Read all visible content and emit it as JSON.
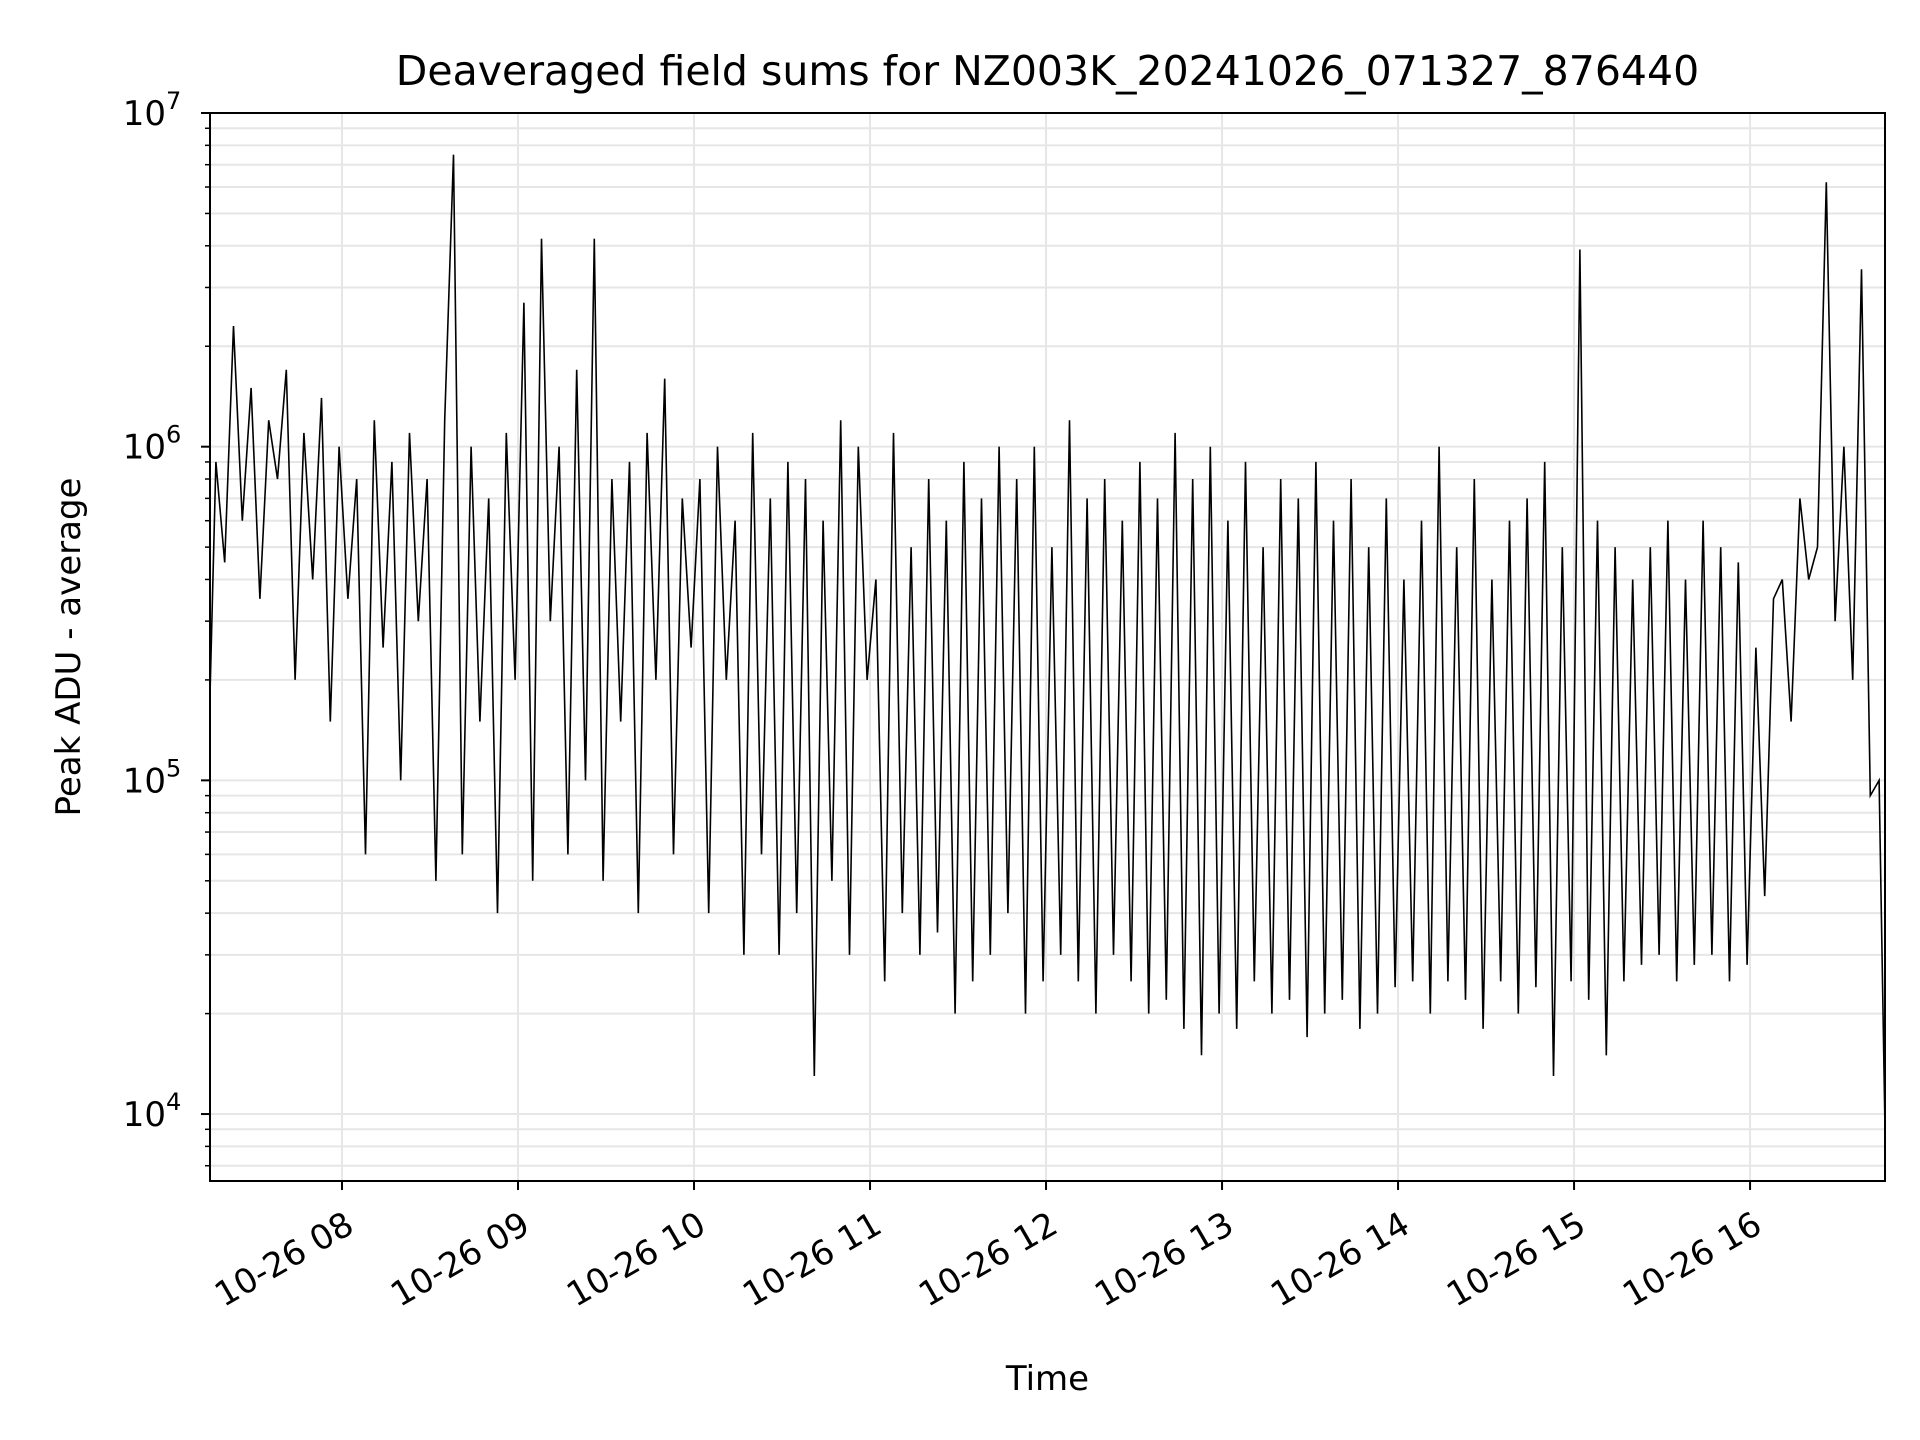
{
  "chart_data": {
    "type": "line",
    "title": "Deaveraged field sums for NZ003K_20241026_071327_876440",
    "xlabel": "Time",
    "ylabel": "Peak ADU - average",
    "yscale": "log",
    "ylim": [
      6300,
      10000000
    ],
    "xlim": [
      "2024-10-26 07:15",
      "2024-10-26 16:46"
    ],
    "grid": true,
    "legend": "none",
    "line_color": "#000000",
    "grid_color": "#e6e6e6",
    "x_ticks": [
      {
        "time": "2024-10-26 08:00",
        "label": "10-26 08"
      },
      {
        "time": "2024-10-26 09:00",
        "label": "10-26 09"
      },
      {
        "time": "2024-10-26 10:00",
        "label": "10-26 10"
      },
      {
        "time": "2024-10-26 11:00",
        "label": "10-26 11"
      },
      {
        "time": "2024-10-26 12:00",
        "label": "10-26 12"
      },
      {
        "time": "2024-10-26 13:00",
        "label": "10-26 13"
      },
      {
        "time": "2024-10-26 14:00",
        "label": "10-26 14"
      },
      {
        "time": "2024-10-26 15:00",
        "label": "10-26 15"
      },
      {
        "time": "2024-10-26 16:00",
        "label": "10-26 16"
      }
    ],
    "y_ticks": [
      {
        "value": 10000,
        "base": "10",
        "exp": "4"
      },
      {
        "value": 100000,
        "base": "10",
        "exp": "5"
      },
      {
        "value": 1000000,
        "base": "10",
        "exp": "6"
      },
      {
        "value": 10000000,
        "base": "10",
        "exp": "7"
      }
    ],
    "series": [
      {
        "x": [
          "2024-10-26 07:15",
          "2024-10-26 07:17",
          "2024-10-26 07:20",
          "2024-10-26 07:23",
          "2024-10-26 07:26",
          "2024-10-26 07:29",
          "2024-10-26 07:32",
          "2024-10-26 07:35",
          "2024-10-26 07:38",
          "2024-10-26 07:41",
          "2024-10-26 07:44",
          "2024-10-26 07:47",
          "2024-10-26 07:50",
          "2024-10-26 07:53",
          "2024-10-26 07:56",
          "2024-10-26 07:59",
          "2024-10-26 08:02",
          "2024-10-26 08:05",
          "2024-10-26 08:08",
          "2024-10-26 08:11",
          "2024-10-26 08:14",
          "2024-10-26 08:17",
          "2024-10-26 08:20",
          "2024-10-26 08:23",
          "2024-10-26 08:26",
          "2024-10-26 08:29",
          "2024-10-26 08:32",
          "2024-10-26 08:35",
          "2024-10-26 08:38",
          "2024-10-26 08:41",
          "2024-10-26 08:44",
          "2024-10-26 08:47",
          "2024-10-26 08:50",
          "2024-10-26 08:53",
          "2024-10-26 08:56",
          "2024-10-26 08:59",
          "2024-10-26 09:02",
          "2024-10-26 09:05",
          "2024-10-26 09:08",
          "2024-10-26 09:11",
          "2024-10-26 09:14",
          "2024-10-26 09:17",
          "2024-10-26 09:20",
          "2024-10-26 09:23",
          "2024-10-26 09:26",
          "2024-10-26 09:29",
          "2024-10-26 09:32",
          "2024-10-26 09:35",
          "2024-10-26 09:38",
          "2024-10-26 09:41",
          "2024-10-26 09:44",
          "2024-10-26 09:47",
          "2024-10-26 09:50",
          "2024-10-26 09:53",
          "2024-10-26 09:56",
          "2024-10-26 09:59",
          "2024-10-26 10:02",
          "2024-10-26 10:05",
          "2024-10-26 10:08",
          "2024-10-26 10:11",
          "2024-10-26 10:14",
          "2024-10-26 10:17",
          "2024-10-26 10:20",
          "2024-10-26 10:23",
          "2024-10-26 10:26",
          "2024-10-26 10:29",
          "2024-10-26 10:32",
          "2024-10-26 10:35",
          "2024-10-26 10:38",
          "2024-10-26 10:41",
          "2024-10-26 10:44",
          "2024-10-26 10:47",
          "2024-10-26 10:50",
          "2024-10-26 10:53",
          "2024-10-26 10:56",
          "2024-10-26 10:59",
          "2024-10-26 11:02",
          "2024-10-26 11:05",
          "2024-10-26 11:08",
          "2024-10-26 11:11",
          "2024-10-26 11:14",
          "2024-10-26 11:17",
          "2024-10-26 11:20",
          "2024-10-26 11:23",
          "2024-10-26 11:26",
          "2024-10-26 11:29",
          "2024-10-26 11:32",
          "2024-10-26 11:35",
          "2024-10-26 11:38",
          "2024-10-26 11:41",
          "2024-10-26 11:44",
          "2024-10-26 11:47",
          "2024-10-26 11:50",
          "2024-10-26 11:53",
          "2024-10-26 11:56",
          "2024-10-26 11:59",
          "2024-10-26 12:02",
          "2024-10-26 12:05",
          "2024-10-26 12:08",
          "2024-10-26 12:11",
          "2024-10-26 12:14",
          "2024-10-26 12:17",
          "2024-10-26 12:20",
          "2024-10-26 12:23",
          "2024-10-26 12:26",
          "2024-10-26 12:29",
          "2024-10-26 12:32",
          "2024-10-26 12:35",
          "2024-10-26 12:38",
          "2024-10-26 12:41",
          "2024-10-26 12:44",
          "2024-10-26 12:47",
          "2024-10-26 12:50",
          "2024-10-26 12:53",
          "2024-10-26 12:56",
          "2024-10-26 12:59",
          "2024-10-26 13:02",
          "2024-10-26 13:05",
          "2024-10-26 13:08",
          "2024-10-26 13:11",
          "2024-10-26 13:14",
          "2024-10-26 13:17",
          "2024-10-26 13:20",
          "2024-10-26 13:23",
          "2024-10-26 13:26",
          "2024-10-26 13:29",
          "2024-10-26 13:32",
          "2024-10-26 13:35",
          "2024-10-26 13:38",
          "2024-10-26 13:41",
          "2024-10-26 13:44",
          "2024-10-26 13:47",
          "2024-10-26 13:50",
          "2024-10-26 13:53",
          "2024-10-26 13:56",
          "2024-10-26 13:59",
          "2024-10-26 14:02",
          "2024-10-26 14:05",
          "2024-10-26 14:08",
          "2024-10-26 14:11",
          "2024-10-26 14:14",
          "2024-10-26 14:17",
          "2024-10-26 14:20",
          "2024-10-26 14:23",
          "2024-10-26 14:26",
          "2024-10-26 14:29",
          "2024-10-26 14:32",
          "2024-10-26 14:35",
          "2024-10-26 14:38",
          "2024-10-26 14:41",
          "2024-10-26 14:44",
          "2024-10-26 14:47",
          "2024-10-26 14:50",
          "2024-10-26 14:53",
          "2024-10-26 14:56",
          "2024-10-26 14:59",
          "2024-10-26 15:02",
          "2024-10-26 15:05",
          "2024-10-26 15:08",
          "2024-10-26 15:11",
          "2024-10-26 15:14",
          "2024-10-26 15:17",
          "2024-10-26 15:20",
          "2024-10-26 15:23",
          "2024-10-26 15:26",
          "2024-10-26 15:29",
          "2024-10-26 15:32",
          "2024-10-26 15:35",
          "2024-10-26 15:38",
          "2024-10-26 15:41",
          "2024-10-26 15:44",
          "2024-10-26 15:47",
          "2024-10-26 15:50",
          "2024-10-26 15:53",
          "2024-10-26 15:56",
          "2024-10-26 15:59",
          "2024-10-26 16:02",
          "2024-10-26 16:05",
          "2024-10-26 16:08",
          "2024-10-26 16:11",
          "2024-10-26 16:14",
          "2024-10-26 16:17",
          "2024-10-26 16:20",
          "2024-10-26 16:23",
          "2024-10-26 16:26",
          "2024-10-26 16:29",
          "2024-10-26 16:32",
          "2024-10-26 16:35",
          "2024-10-26 16:38",
          "2024-10-26 16:41",
          "2024-10-26 16:44",
          "2024-10-26 16:46"
        ],
        "y": [
          180000,
          900000,
          450000,
          2300000,
          600000,
          1500000,
          350000,
          1200000,
          800000,
          1700000,
          200000,
          1100000,
          400000,
          1400000,
          150000,
          1000000,
          350000,
          800000,
          60000,
          1200000,
          250000,
          900000,
          100000,
          1100000,
          300000,
          800000,
          50000,
          1200000,
          7500000,
          60000,
          1000000,
          150000,
          700000,
          40000,
          1100000,
          200000,
          2700000,
          50000,
          4200000,
          300000,
          1000000,
          60000,
          1700000,
          100000,
          4200000,
          50000,
          800000,
          150000,
          900000,
          40000,
          1100000,
          200000,
          1600000,
          60000,
          700000,
          250000,
          800000,
          40000,
          1000000,
          200000,
          600000,
          30000,
          1100000,
          60000,
          700000,
          30000,
          900000,
          40000,
          800000,
          13000,
          600000,
          50000,
          1200000,
          30000,
          1000000,
          200000,
          400000,
          25000,
          1100000,
          40000,
          500000,
          30000,
          800000,
          35000,
          600000,
          20000,
          900000,
          25000,
          700000,
          30000,
          1000000,
          40000,
          800000,
          20000,
          1000000,
          25000,
          500000,
          30000,
          1200000,
          25000,
          700000,
          20000,
          800000,
          30000,
          600000,
          25000,
          900000,
          20000,
          700000,
          22000,
          1100000,
          18000,
          800000,
          15000,
          1000000,
          20000,
          600000,
          18000,
          900000,
          25000,
          500000,
          20000,
          800000,
          22000,
          700000,
          17000,
          900000,
          20000,
          600000,
          22000,
          800000,
          18000,
          500000,
          20000,
          700000,
          24000,
          400000,
          25000,
          600000,
          20000,
          1000000,
          25000,
          500000,
          22000,
          800000,
          18000,
          400000,
          25000,
          600000,
          20000,
          700000,
          24000,
          900000,
          13000,
          500000,
          25000,
          3900000,
          22000,
          600000,
          15000,
          500000,
          25000,
          400000,
          28000,
          500000,
          30000,
          600000,
          25000,
          400000,
          28000,
          600000,
          30000,
          500000,
          25000,
          450000,
          28000,
          250000,
          45000,
          350000,
          400000,
          150000,
          700000,
          400000,
          500000,
          6200000,
          300000,
          1000000,
          200000,
          3400000,
          90000,
          100000,
          9000
        ]
      }
    ]
  }
}
